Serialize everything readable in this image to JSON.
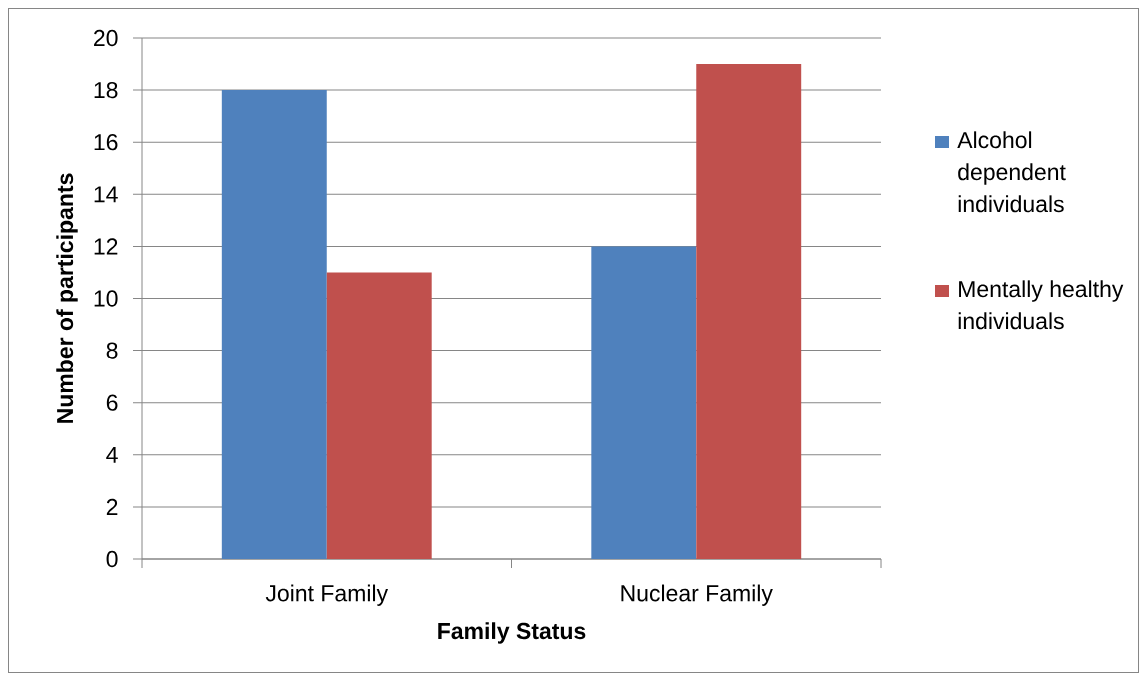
{
  "chart_data": {
    "type": "bar",
    "xlabel": "Family Status",
    "ylabel": "Number of participants",
    "categories": [
      "Joint Family",
      "Nuclear Family"
    ],
    "series": [
      {
        "name": "Alcohol dependent individuals",
        "color": "#4f81bd",
        "values": [
          18,
          12
        ]
      },
      {
        "name": "Mentally healthy individuals",
        "color": "#c0504d",
        "values": [
          11,
          19
        ]
      }
    ],
    "ylim": [
      0,
      20
    ],
    "yticks": [
      0,
      2,
      4,
      6,
      8,
      10,
      12,
      14,
      16,
      18,
      20
    ],
    "grid": "y",
    "legend": "right"
  }
}
